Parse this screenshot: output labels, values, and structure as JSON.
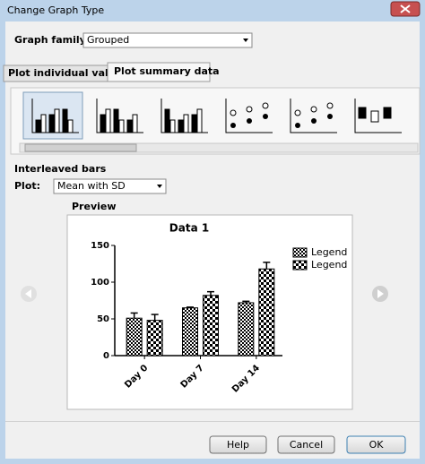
{
  "window": {
    "title": "Change Graph Type"
  },
  "graph_family": {
    "label": "Graph family:",
    "value": "Grouped"
  },
  "tabs": [
    "Plot individual values",
    "Plot summary data"
  ],
  "section": "Interleaved bars",
  "plot": {
    "label": "Plot:",
    "value": "Mean with SD"
  },
  "preview": {
    "label": "Preview",
    "chart": {
      "type": "bar",
      "title": "Data 1",
      "categories": [
        "Day 0",
        "Day 7",
        "Day 14"
      ],
      "series": [
        {
          "name": "Legend",
          "values": [
            51,
            65,
            72
          ],
          "errors": [
            7,
            1,
            2
          ]
        },
        {
          "name": "Legend",
          "values": [
            48,
            82,
            118
          ],
          "errors": [
            8,
            5,
            9
          ]
        }
      ],
      "ylim": [
        0,
        150
      ],
      "yticks": [
        0,
        50,
        100,
        150
      ]
    }
  },
  "buttons": [
    "Help",
    "Cancel",
    "OK"
  ]
}
